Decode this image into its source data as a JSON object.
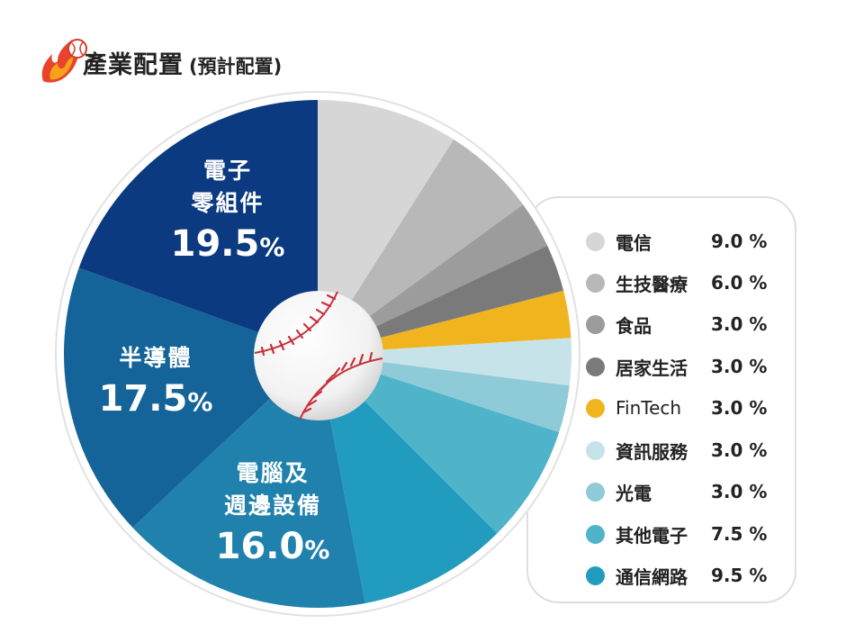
{
  "header": {
    "title": "產業配置",
    "subtitle": "(預計配置)"
  },
  "colors": {
    "電子零組件": "#0b3a80",
    "半導體": "#156499",
    "電腦及週邊設備": "#2081ad",
    "通信網路": "#219cbf",
    "其他電子": "#4fb3ca",
    "光電": "#8ecad8",
    "資訊服務": "#c7e3ea",
    "FinTech": "#f0b51e",
    "居家生活": "#7a7a7a",
    "食品": "#9c9c9c",
    "生技醫療": "#b8b8b8",
    "電信": "#d6d6d6"
  },
  "chart_data": {
    "type": "pie",
    "title": "產業配置",
    "subtitle": "(預計配置)",
    "unit": "%",
    "slices": [
      {
        "label": "電信",
        "value": 9.0,
        "display": "9.0 %"
      },
      {
        "label": "生技醫療",
        "value": 6.0,
        "display": "6.0 %"
      },
      {
        "label": "食品",
        "value": 3.0,
        "display": "3.0 %"
      },
      {
        "label": "居家生活",
        "value": 3.0,
        "display": "3.0 %"
      },
      {
        "label": "FinTech",
        "value": 3.0,
        "display": "3.0 %"
      },
      {
        "label": "資訊服務",
        "value": 3.0,
        "display": "3.0 %"
      },
      {
        "label": "光電",
        "value": 3.0,
        "display": "3.0 %"
      },
      {
        "label": "其他電子",
        "value": 7.5,
        "display": "7.5 %"
      },
      {
        "label": "通信網路",
        "value": 9.5,
        "display": "9.5 %"
      },
      {
        "label": "電腦及週邊設備",
        "value": 16.0,
        "display": "16.0%"
      },
      {
        "label": "半導體",
        "value": 17.5,
        "display": "17.5%"
      },
      {
        "label": "電子零組件",
        "value": 19.5,
        "display": "19.5%"
      }
    ],
    "slice_labels": [
      {
        "name": "電子零組件",
        "line1": "電子",
        "line2": "零組件",
        "pct": "19.5",
        "unit": "%"
      },
      {
        "name": "半導體",
        "line1": "半導體",
        "line2": "",
        "pct": "17.5",
        "unit": "%"
      },
      {
        "name": "電腦及週邊設備",
        "line1": "電腦及",
        "line2": "週邊設備",
        "pct": "16.0",
        "unit": "%"
      }
    ],
    "legend": [
      {
        "name": "電信",
        "value": "9.0 %"
      },
      {
        "name": "生技醫療",
        "value": "6.0 %"
      },
      {
        "name": "食品",
        "value": "3.0 %"
      },
      {
        "name": "居家生活",
        "value": "3.0 %"
      },
      {
        "name": "FinTech",
        "value": "3.0 %"
      },
      {
        "name": "資訊服務",
        "value": "3.0 %"
      },
      {
        "name": "光電",
        "value": "3.0 %"
      },
      {
        "name": "其他電子",
        "value": "7.5 %"
      },
      {
        "name": "通信網路",
        "value": "9.5 %"
      }
    ],
    "legend_placement": "right"
  }
}
